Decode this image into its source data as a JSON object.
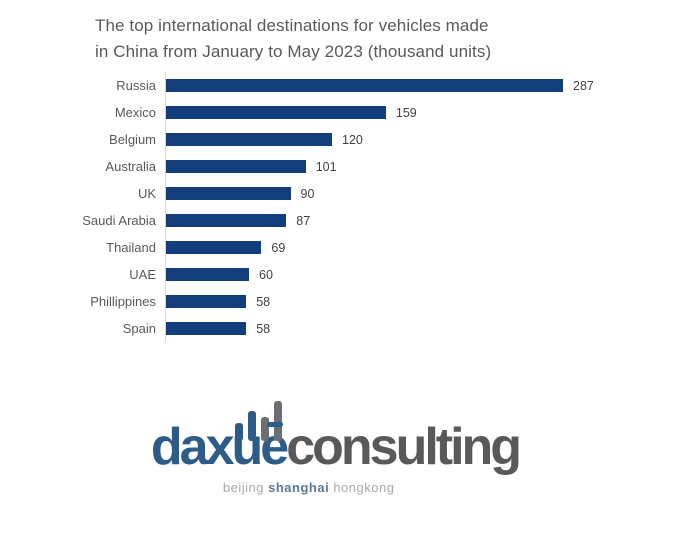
{
  "title": {
    "line1": "The top international destinations for vehicles made",
    "line2": "in China from January to May 2023 (thousand units)"
  },
  "chart_data": {
    "type": "bar",
    "orientation": "horizontal",
    "title": "The top international destinations for vehicles made in China from January to May 2023 (thousand units)",
    "categories": [
      "Russia",
      "Mexico",
      "Belgium",
      "Australia",
      "UK",
      "Saudi Arabia",
      "Thailand",
      "UAE",
      "Phillippines",
      "Spain"
    ],
    "values": [
      287,
      159,
      120,
      101,
      90,
      87,
      69,
      60,
      58,
      58
    ],
    "xlabel": "",
    "ylabel": "",
    "xlim": [
      0,
      300
    ],
    "grid": false,
    "legend": "none",
    "value_labels": true,
    "bar_color": "#123f7c",
    "axis_line_color": "#d9d9d9",
    "label_color": "#595959",
    "value_label_color": "#414141"
  },
  "logo": {
    "brand_primary": "daxue",
    "brand_secondary": "consulting",
    "tagline_word1": "beijing",
    "tagline_word2": "shanghai",
    "tagline_word3": "hongkong",
    "brand_primary_color": "#2d5c89",
    "brand_secondary_color": "#58595b",
    "icon": "bar-chart-icon"
  }
}
